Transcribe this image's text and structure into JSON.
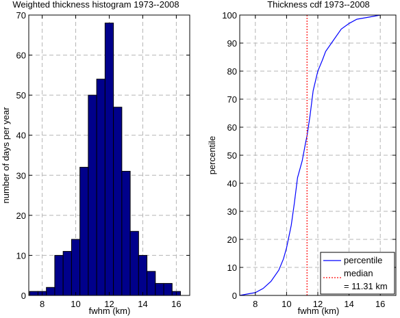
{
  "colors": {
    "bar_fill": "#00008b",
    "cdf_line": "#0000ff",
    "median_line": "#ff0000",
    "grid": "#b4b4b4"
  },
  "chart_data": [
    {
      "type": "bar",
      "title": "Weighted thickness histogram 1973--2008",
      "xlabel": "fwhm (km)",
      "ylabel": "number of days per year",
      "xlim": [
        7.2,
        16.8
      ],
      "ylim": [
        0,
        70
      ],
      "xticks": [
        8,
        10,
        12,
        14,
        16
      ],
      "yticks": [
        0,
        10,
        20,
        30,
        40,
        50,
        60,
        70
      ],
      "grid": true,
      "bin_width": 0.5,
      "bin_centers": [
        7.5,
        8.0,
        8.5,
        9.0,
        9.5,
        10.0,
        10.5,
        11.0,
        11.5,
        12.0,
        12.5,
        13.0,
        13.5,
        14.0,
        14.5,
        15.0,
        15.5,
        16.0
      ],
      "values": [
        1,
        1,
        2,
        10,
        11,
        14,
        32,
        50,
        54,
        68,
        47,
        31,
        16,
        10,
        6,
        3,
        3,
        1
      ]
    },
    {
      "type": "line",
      "title": "Thickness cdf 1973--2008",
      "xlabel": "fwhm (km)",
      "ylabel": "percentile",
      "xlim": [
        7,
        17
      ],
      "ylim": [
        0,
        100
      ],
      "xticks": [
        8,
        10,
        12,
        14,
        16
      ],
      "yticks": [
        0,
        10,
        20,
        30,
        40,
        50,
        60,
        70,
        80,
        90,
        100
      ],
      "grid": true,
      "legend_position": "bottom-right",
      "series": [
        {
          "name": "percentile",
          "x": [
            7.0,
            7.5,
            8.0,
            8.5,
            9.0,
            9.5,
            9.8,
            10.0,
            10.3,
            10.5,
            10.7,
            11.0,
            11.2,
            11.31,
            11.5,
            11.7,
            12.0,
            12.3,
            12.5,
            13.0,
            13.5,
            14.0,
            14.5,
            15.0,
            15.5,
            16.0
          ],
          "y": [
            0,
            0.5,
            1,
            2.5,
            5,
            9,
            13,
            17,
            25,
            33,
            42,
            48,
            54,
            57,
            64,
            73,
            80,
            84,
            87,
            91,
            95,
            97,
            98.5,
            99,
            99.5,
            100
          ]
        },
        {
          "name": "median",
          "x": [
            11.31,
            11.31
          ],
          "y": [
            0,
            100
          ]
        }
      ],
      "legend": {
        "entries": [
          "percentile",
          "median",
          "= 11.31 km"
        ]
      }
    }
  ]
}
